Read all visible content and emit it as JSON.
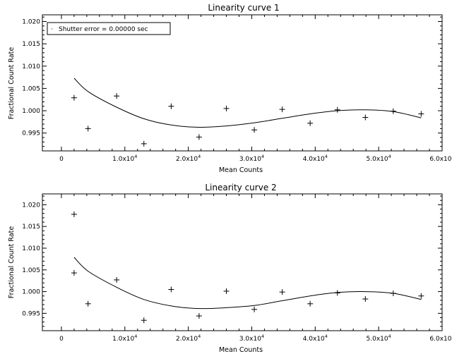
{
  "chart_data": [
    {
      "type": "scatter",
      "title": "Linearity curve 1",
      "xlabel": "Mean Counts",
      "ylabel": "Fractional Count Rate",
      "xlim": [
        -3000,
        60000
      ],
      "ylim": [
        0.991,
        1.0215
      ],
      "x_ticks": [
        0,
        10000,
        20000,
        30000,
        40000,
        50000,
        60000
      ],
      "x_tick_labels": [
        {
          "base": "0",
          "exp": ""
        },
        {
          "base": "1.0x10",
          "exp": "4"
        },
        {
          "base": "2.0x10",
          "exp": "4"
        },
        {
          "base": "3.0x10",
          "exp": "4"
        },
        {
          "base": "4.0x10",
          "exp": "4"
        },
        {
          "base": "5.0x10",
          "exp": "4"
        },
        {
          "base": "6.0x10",
          "exp": "4"
        }
      ],
      "y_ticks": [
        0.995,
        1.0,
        1.005,
        1.01,
        1.015,
        1.02
      ],
      "y_tick_labels": [
        "0.995",
        "1.000",
        "1.005",
        "1.010",
        "1.015",
        "1.020"
      ],
      "legend": {
        "text": "Shutter error =  0.00000 sec",
        "position": "top-left"
      },
      "points": {
        "x": [
          2000,
          4200,
          8700,
          13000,
          17300,
          21700,
          26000,
          30400,
          34800,
          39200,
          43500,
          47900,
          52300,
          56700
        ],
        "y": [
          1.0029,
          0.996,
          1.0033,
          0.9926,
          1.001,
          0.9941,
          1.0005,
          0.9957,
          1.0003,
          0.9972,
          1.0002,
          0.9985,
          0.9999,
          0.9993
        ]
      },
      "fit_curve": {
        "x": [
          2000,
          4200,
          8700,
          13000,
          17300,
          21700,
          26000,
          30400,
          34800,
          39200,
          43500,
          47900,
          52300,
          56700
        ],
        "y": [
          1.0073,
          1.0043,
          1.0008,
          0.9982,
          0.9968,
          0.9963,
          0.9966,
          0.9973,
          0.9983,
          0.9993,
          1.0,
          1.0002,
          0.9998,
          0.9984
        ]
      }
    },
    {
      "type": "scatter",
      "title": "Linearity curve 2",
      "xlabel": "Mean Counts",
      "ylabel": "Fractional Count Rate",
      "xlim": [
        -3000,
        60000
      ],
      "ylim": [
        0.991,
        1.0225
      ],
      "x_ticks": [
        0,
        10000,
        20000,
        30000,
        40000,
        50000,
        60000
      ],
      "x_tick_labels": [
        {
          "base": "0",
          "exp": ""
        },
        {
          "base": "1.0x10",
          "exp": "4"
        },
        {
          "base": "2.0x10",
          "exp": "4"
        },
        {
          "base": "3.0x10",
          "exp": "4"
        },
        {
          "base": "4.0x10",
          "exp": "4"
        },
        {
          "base": "5.0x10",
          "exp": "4"
        },
        {
          "base": "6.0x10",
          "exp": "4"
        }
      ],
      "y_ticks": [
        0.995,
        1.0,
        1.005,
        1.01,
        1.015,
        1.02
      ],
      "y_tick_labels": [
        "0.995",
        "1.000",
        "1.005",
        "1.010",
        "1.015",
        "1.020"
      ],
      "points": {
        "x": [
          2000,
          2000,
          4200,
          8700,
          13000,
          17300,
          21700,
          26000,
          30400,
          34800,
          39200,
          43500,
          47900,
          52300,
          56700
        ],
        "y": [
          1.0178,
          1.0043,
          0.9972,
          1.0027,
          0.9934,
          1.0005,
          0.9944,
          1.0001,
          0.9959,
          0.9999,
          0.9972,
          0.9997,
          0.9983,
          0.9996,
          0.999
        ]
      },
      "fit_curve": {
        "x": [
          2000,
          4200,
          8700,
          13000,
          17300,
          21700,
          26000,
          30400,
          34800,
          39200,
          43500,
          47900,
          52300,
          56700
        ],
        "y": [
          1.0079,
          1.0047,
          1.001,
          0.9982,
          0.9967,
          0.9961,
          0.9963,
          0.9968,
          0.9979,
          0.999,
          0.9998,
          1.0,
          0.9996,
          0.9982
        ]
      }
    }
  ]
}
